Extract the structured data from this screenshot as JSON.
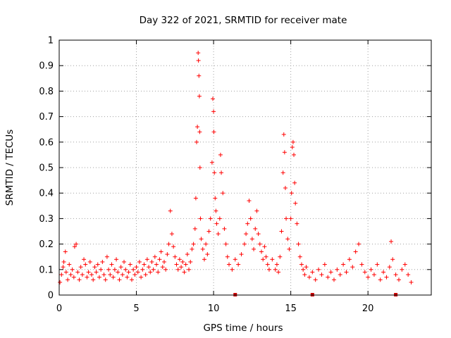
{
  "chart_data": {
    "type": "scatter",
    "title": "Day 322 of 2021, SRMTID for receiver mate",
    "xlabel": "GPS time / hours",
    "ylabel": "SRMTID / TECUs",
    "xlim": [
      0,
      24.1
    ],
    "ylim": [
      0,
      1
    ],
    "x_ticks": [
      0,
      5,
      10,
      15,
      20
    ],
    "x_tick_labels": [
      "0",
      "5",
      "10",
      "15",
      "20"
    ],
    "y_ticks": [
      0,
      0.1,
      0.2,
      0.3,
      0.4,
      0.5,
      0.6,
      0.7,
      0.8,
      0.9,
      1
    ],
    "y_tick_labels": [
      "0",
      "0.1",
      "0.2",
      "0.3",
      "0.4",
      "0.5",
      "0.6",
      "0.7",
      "0.8",
      "0.9",
      "1"
    ],
    "grid": true,
    "series": [
      {
        "name": "SRMTID",
        "marker": "plus",
        "color": "#ff0000",
        "points": [
          [
            0.05,
            0.05
          ],
          [
            0.15,
            0.08
          ],
          [
            0.25,
            0.11
          ],
          [
            0.3,
            0.13
          ],
          [
            0.4,
            0.17
          ],
          [
            0.45,
            0.09
          ],
          [
            0.55,
            0.06
          ],
          [
            0.65,
            0.12
          ],
          [
            0.75,
            0.08
          ],
          [
            0.85,
            0.1
          ],
          [
            0.95,
            0.07
          ],
          [
            1.0,
            0.19
          ],
          [
            1.1,
            0.2
          ],
          [
            1.2,
            0.09
          ],
          [
            1.3,
            0.06
          ],
          [
            1.4,
            0.11
          ],
          [
            1.5,
            0.08
          ],
          [
            1.6,
            0.14
          ],
          [
            1.7,
            0.12
          ],
          [
            1.8,
            0.07
          ],
          [
            1.9,
            0.09
          ],
          [
            2.0,
            0.13
          ],
          [
            2.1,
            0.08
          ],
          [
            2.2,
            0.06
          ],
          [
            2.3,
            0.11
          ],
          [
            2.4,
            0.09
          ],
          [
            2.5,
            0.12
          ],
          [
            2.6,
            0.07
          ],
          [
            2.7,
            0.1
          ],
          [
            2.8,
            0.13
          ],
          [
            2.9,
            0.08
          ],
          [
            3.0,
            0.06
          ],
          [
            3.1,
            0.15
          ],
          [
            3.2,
            0.1
          ],
          [
            3.3,
            0.08
          ],
          [
            3.4,
            0.12
          ],
          [
            3.5,
            0.07
          ],
          [
            3.6,
            0.1
          ],
          [
            3.7,
            0.14
          ],
          [
            3.8,
            0.09
          ],
          [
            3.9,
            0.06
          ],
          [
            4.0,
            0.11
          ],
          [
            4.1,
            0.08
          ],
          [
            4.2,
            0.13
          ],
          [
            4.3,
            0.1
          ],
          [
            4.4,
            0.07
          ],
          [
            4.5,
            0.09
          ],
          [
            4.6,
            0.12
          ],
          [
            4.7,
            0.06
          ],
          [
            4.8,
            0.1
          ],
          [
            4.9,
            0.08
          ],
          [
            5.0,
            0.11
          ],
          [
            5.1,
            0.09
          ],
          [
            5.2,
            0.13
          ],
          [
            5.3,
            0.07
          ],
          [
            5.4,
            0.1
          ],
          [
            5.5,
            0.12
          ],
          [
            5.6,
            0.08
          ],
          [
            5.7,
            0.14
          ],
          [
            5.8,
            0.11
          ],
          [
            5.9,
            0.09
          ],
          [
            6.0,
            0.13
          ],
          [
            6.1,
            0.1
          ],
          [
            6.2,
            0.15
          ],
          [
            6.3,
            0.12
          ],
          [
            6.4,
            0.09
          ],
          [
            6.5,
            0.14
          ],
          [
            6.6,
            0.17
          ],
          [
            6.7,
            0.11
          ],
          [
            6.8,
            0.13
          ],
          [
            6.9,
            0.1
          ],
          [
            7.0,
            0.16
          ],
          [
            7.1,
            0.2
          ],
          [
            7.2,
            0.33
          ],
          [
            7.3,
            0.24
          ],
          [
            7.4,
            0.19
          ],
          [
            7.5,
            0.15
          ],
          [
            7.6,
            0.12
          ],
          [
            7.7,
            0.1
          ],
          [
            7.8,
            0.14
          ],
          [
            7.9,
            0.11
          ],
          [
            8.0,
            0.13
          ],
          [
            8.1,
            0.09
          ],
          [
            8.2,
            0.12
          ],
          [
            8.3,
            0.16
          ],
          [
            8.4,
            0.1
          ],
          [
            8.5,
            0.13
          ],
          [
            8.6,
            0.18
          ],
          [
            8.7,
            0.2
          ],
          [
            8.8,
            0.26
          ],
          [
            8.85,
            0.38
          ],
          [
            8.9,
            0.6
          ],
          [
            8.95,
            0.66
          ],
          [
            9.0,
            0.95
          ],
          [
            9.02,
            0.92
          ],
          [
            9.05,
            0.86
          ],
          [
            9.08,
            0.78
          ],
          [
            9.1,
            0.64
          ],
          [
            9.12,
            0.5
          ],
          [
            9.15,
            0.3
          ],
          [
            9.2,
            0.22
          ],
          [
            9.3,
            0.18
          ],
          [
            9.4,
            0.14
          ],
          [
            9.5,
            0.2
          ],
          [
            9.6,
            0.16
          ],
          [
            9.7,
            0.25
          ],
          [
            9.8,
            0.3
          ],
          [
            9.9,
            0.52
          ],
          [
            9.95,
            0.77
          ],
          [
            10.0,
            0.72
          ],
          [
            10.02,
            0.64
          ],
          [
            10.05,
            0.48
          ],
          [
            10.1,
            0.38
          ],
          [
            10.15,
            0.33
          ],
          [
            10.2,
            0.28
          ],
          [
            10.3,
            0.24
          ],
          [
            10.4,
            0.3
          ],
          [
            10.45,
            0.55
          ],
          [
            10.5,
            0.48
          ],
          [
            10.6,
            0.4
          ],
          [
            10.7,
            0.26
          ],
          [
            10.8,
            0.2
          ],
          [
            10.9,
            0.15
          ],
          [
            11.0,
            0.12
          ],
          [
            11.2,
            0.1
          ],
          [
            11.4,
            0.14
          ],
          [
            11.6,
            0.12
          ],
          [
            11.8,
            0.16
          ],
          [
            12.0,
            0.2
          ],
          [
            12.1,
            0.24
          ],
          [
            12.2,
            0.28
          ],
          [
            12.3,
            0.37
          ],
          [
            12.4,
            0.3
          ],
          [
            12.5,
            0.22
          ],
          [
            12.6,
            0.18
          ],
          [
            12.7,
            0.26
          ],
          [
            12.8,
            0.33
          ],
          [
            12.9,
            0.24
          ],
          [
            13.0,
            0.2
          ],
          [
            13.1,
            0.17
          ],
          [
            13.2,
            0.14
          ],
          [
            13.3,
            0.19
          ],
          [
            13.4,
            0.15
          ],
          [
            13.5,
            0.12
          ],
          [
            13.6,
            0.1
          ],
          [
            13.8,
            0.14
          ],
          [
            14.0,
            0.1
          ],
          [
            14.1,
            0.12
          ],
          [
            14.2,
            0.09
          ],
          [
            14.3,
            0.15
          ],
          [
            14.4,
            0.25
          ],
          [
            14.5,
            0.48
          ],
          [
            14.55,
            0.63
          ],
          [
            14.6,
            0.56
          ],
          [
            14.65,
            0.42
          ],
          [
            14.7,
            0.3
          ],
          [
            14.8,
            0.22
          ],
          [
            14.9,
            0.18
          ],
          [
            15.0,
            0.3
          ],
          [
            15.05,
            0.4
          ],
          [
            15.1,
            0.58
          ],
          [
            15.15,
            0.6
          ],
          [
            15.2,
            0.55
          ],
          [
            15.25,
            0.44
          ],
          [
            15.3,
            0.36
          ],
          [
            15.4,
            0.28
          ],
          [
            15.5,
            0.2
          ],
          [
            15.6,
            0.15
          ],
          [
            15.7,
            0.12
          ],
          [
            15.8,
            0.1
          ],
          [
            15.9,
            0.08
          ],
          [
            16.0,
            0.11
          ],
          [
            16.2,
            0.07
          ],
          [
            16.4,
            0.09
          ],
          [
            16.6,
            0.06
          ],
          [
            16.8,
            0.1
          ],
          [
            17.0,
            0.08
          ],
          [
            17.2,
            0.12
          ],
          [
            17.4,
            0.07
          ],
          [
            17.6,
            0.09
          ],
          [
            17.8,
            0.06
          ],
          [
            18.0,
            0.1
          ],
          [
            18.2,
            0.08
          ],
          [
            18.4,
            0.12
          ],
          [
            18.6,
            0.09
          ],
          [
            18.8,
            0.14
          ],
          [
            19.0,
            0.11
          ],
          [
            19.2,
            0.17
          ],
          [
            19.4,
            0.2
          ],
          [
            19.6,
            0.12
          ],
          [
            19.8,
            0.09
          ],
          [
            20.0,
            0.07
          ],
          [
            20.2,
            0.1
          ],
          [
            20.4,
            0.08
          ],
          [
            20.6,
            0.12
          ],
          [
            20.8,
            0.06
          ],
          [
            21.0,
            0.09
          ],
          [
            21.2,
            0.07
          ],
          [
            21.4,
            0.11
          ],
          [
            21.5,
            0.21
          ],
          [
            21.6,
            0.14
          ],
          [
            21.8,
            0.08
          ],
          [
            22.0,
            0.06
          ],
          [
            22.2,
            0.1
          ],
          [
            22.4,
            0.12
          ],
          [
            22.6,
            0.08
          ],
          [
            22.8,
            0.05
          ]
        ]
      }
    ],
    "gap_markers_x": [
      11.4,
      16.4,
      21.8
    ]
  }
}
